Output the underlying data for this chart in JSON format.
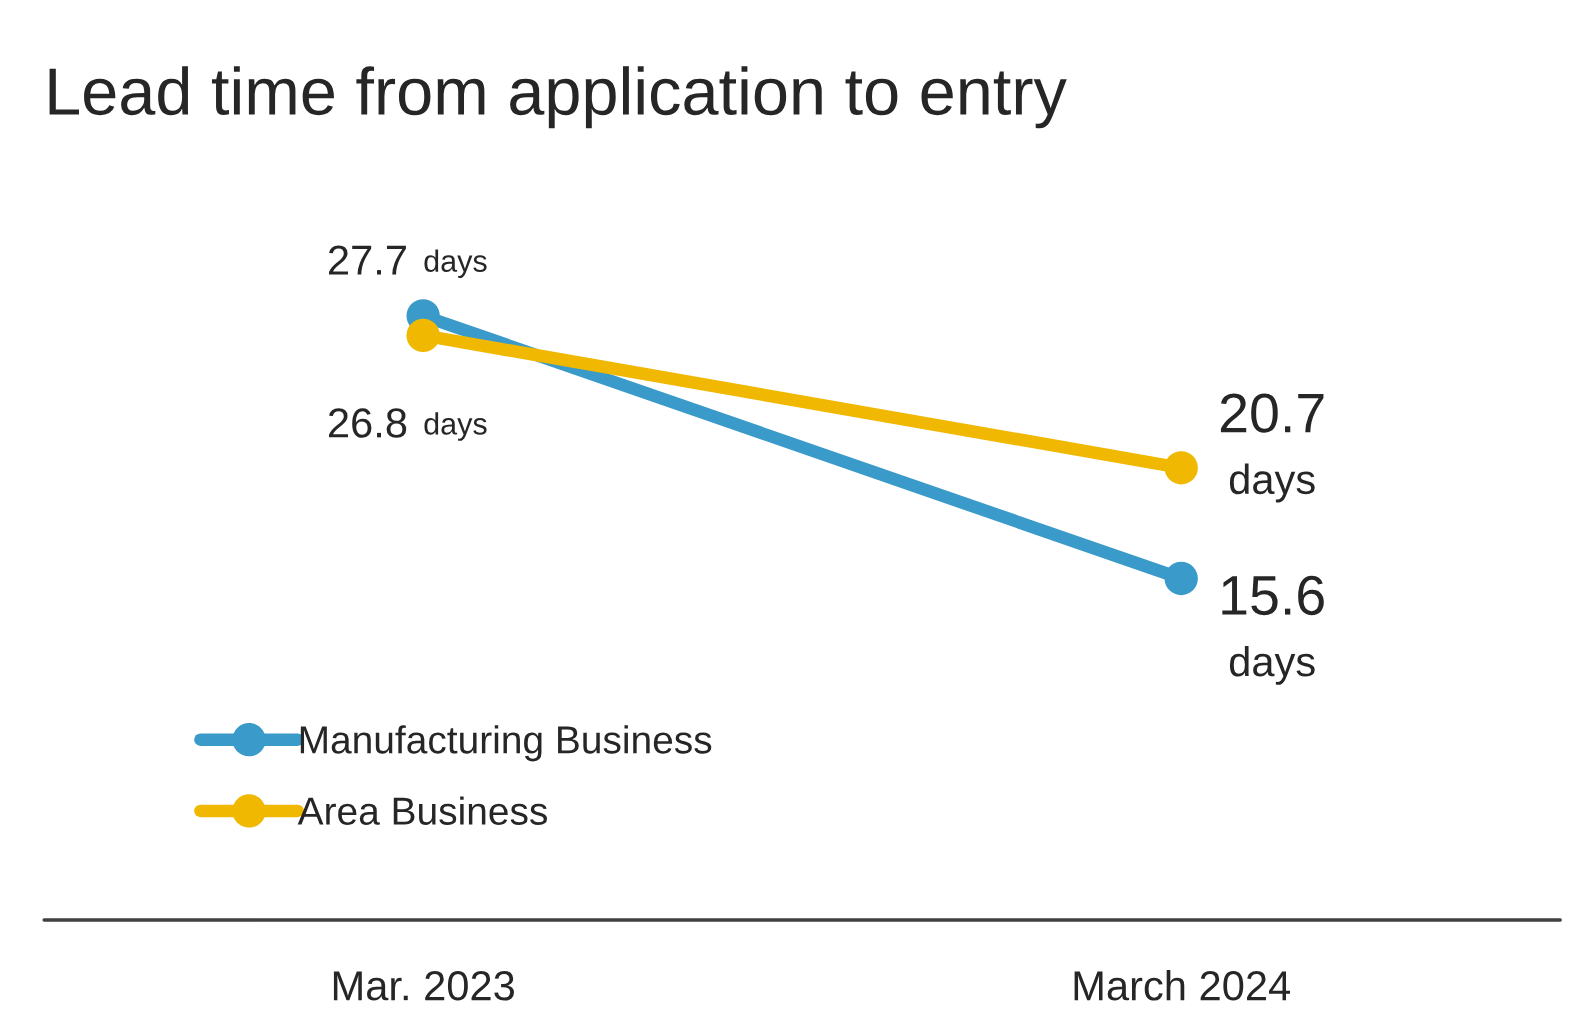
{
  "chart_data": {
    "type": "line",
    "title": "Lead time from application to entry",
    "categories": [
      "Mar. 2023",
      "March 2024"
    ],
    "series": [
      {
        "name": "Manufacturing Business",
        "color": "#3a9ac9",
        "values": [
          27.7,
          15.6
        ],
        "value_labels": [
          "27.7 days",
          "15.6 days"
        ]
      },
      {
        "name": "Area Business",
        "color": "#f0b800",
        "values": [
          26.8,
          20.7
        ],
        "value_labels": [
          "26.8 days",
          "20.7 days"
        ]
      }
    ],
    "tick_labels": "x",
    "grid": false,
    "legend": "bottom left",
    "marker": "circle",
    "line_style": "solid"
  }
}
